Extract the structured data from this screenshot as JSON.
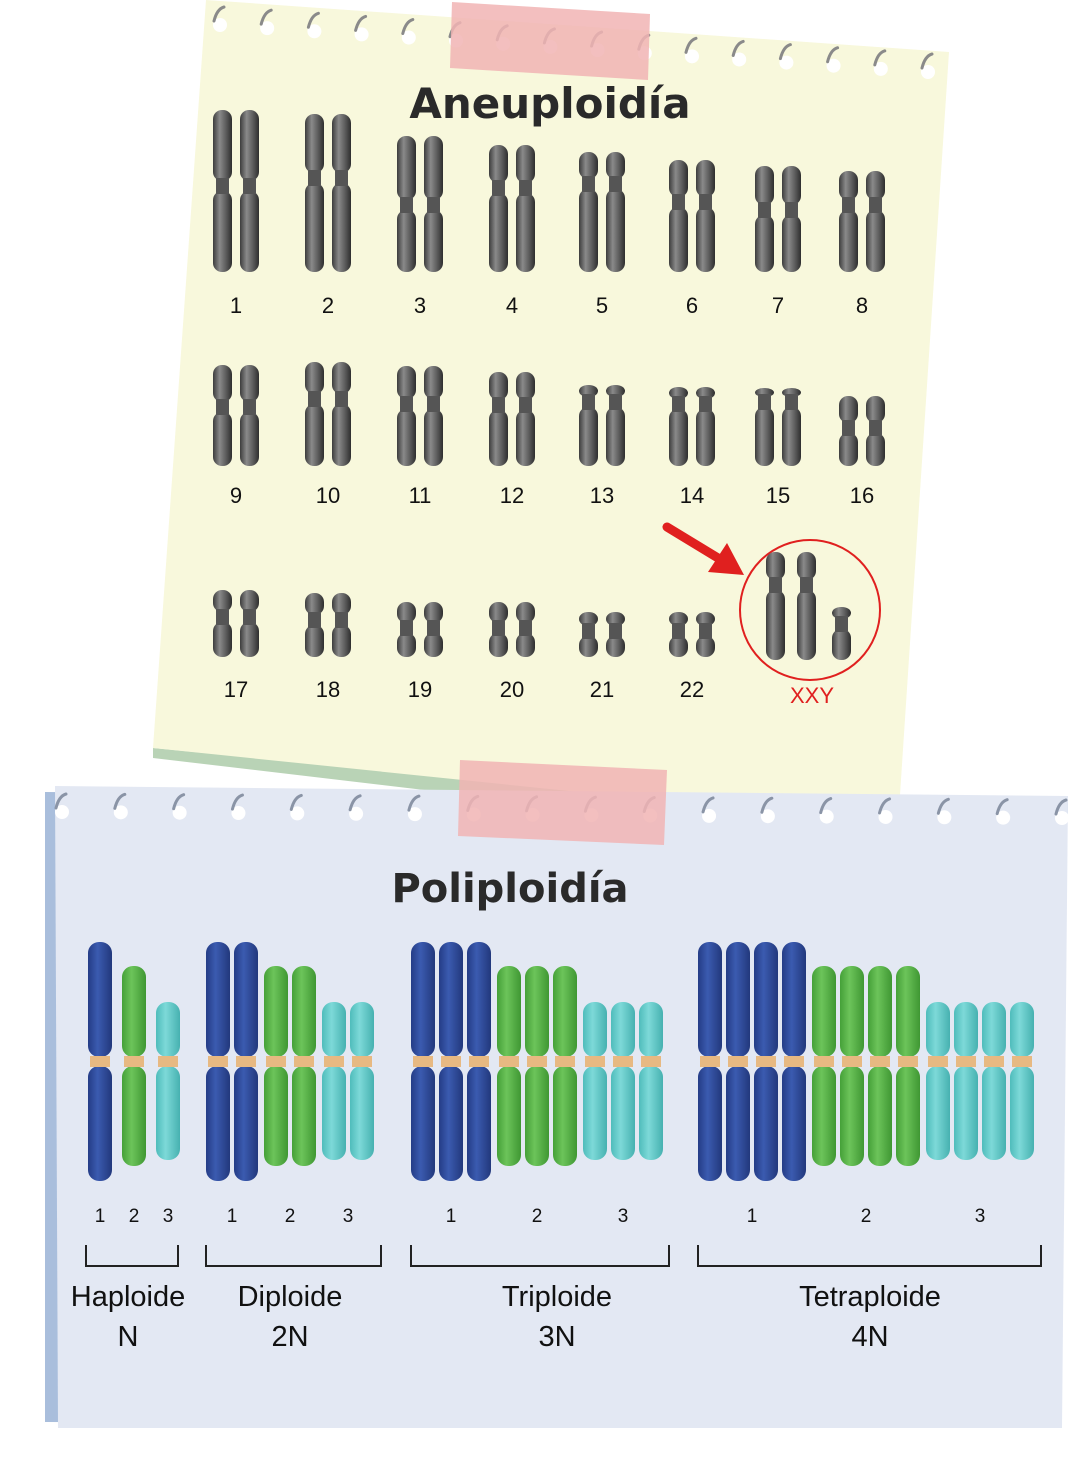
{
  "aneuploidia": {
    "title": "Aneuploidía",
    "chromosome_labels": [
      "1",
      "2",
      "3",
      "4",
      "5",
      "6",
      "7",
      "8",
      "9",
      "10",
      "11",
      "12",
      "13",
      "14",
      "15",
      "16",
      "17",
      "18",
      "19",
      "20",
      "21",
      "22"
    ],
    "highlight_label": "XXY",
    "highlight_color": "#e0201f"
  },
  "poliploidia": {
    "title": "Poliploidía",
    "set_colors": [
      "#2e4a9e",
      "#58b548",
      "#5ec9c8"
    ],
    "groups": [
      {
        "name": "Haploide",
        "ploidy": "N",
        "copies": 1,
        "numbers": [
          "1",
          "2",
          "3"
        ]
      },
      {
        "name": "Diploide",
        "ploidy": "2N",
        "copies": 2,
        "numbers": [
          "1",
          "2",
          "3"
        ]
      },
      {
        "name": "Triploide",
        "ploidy": "3N",
        "copies": 3,
        "numbers": [
          "1",
          "2",
          "3"
        ]
      },
      {
        "name": "Tetraploide",
        "ploidy": "4N",
        "copies": 4,
        "numbers": [
          "1",
          "2",
          "3"
        ]
      }
    ]
  },
  "colors": {
    "note_top": "#f8f8dc",
    "note_bottom": "#e3e8f3",
    "tape": "#f1b4b4",
    "chromosome_grey": "#6b6b6b"
  }
}
